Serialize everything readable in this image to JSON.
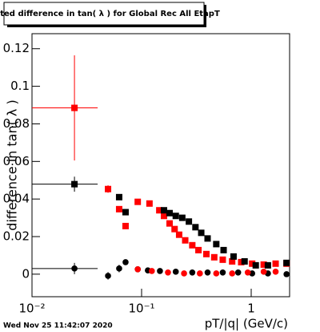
{
  "chart_data": {
    "type": "scatter",
    "title": "Fitted difference in tan( λ ) for Global Rec All EtapT",
    "x_label": "pT/|q| (GeV/c)",
    "y_label": "difference in tan( λ )",
    "date": "Wed Nov 25 11:42:07 2020",
    "log_x": true,
    "xlim": [
      0.01,
      2.24
    ],
    "ylim": [
      -0.012,
      0.128
    ],
    "xticks": [
      {
        "value": 0.01,
        "label": "10⁻²"
      },
      {
        "value": 0.1,
        "label": "10⁻¹"
      },
      1
    ],
    "yticks": [
      0,
      0.02,
      0.04,
      0.06,
      0.08,
      0.1,
      0.12
    ],
    "series": [
      {
        "name": "red squares",
        "color": "#ff0000",
        "marker": "square",
        "x": [
          0.0244,
          0.0494,
          0.0624,
          0.0714,
          0.0922,
          0.118,
          0.145,
          0.16,
          0.18,
          0.2,
          0.22,
          0.25,
          0.29,
          0.33,
          0.39,
          0.46,
          0.55,
          0.67,
          0.81,
          1.02,
          1.3,
          1.67,
          2.1
        ],
        "values": [
          0.0885,
          0.0453,
          0.0346,
          0.0256,
          0.0385,
          0.0376,
          0.034,
          0.031,
          0.027,
          0.024,
          0.021,
          0.018,
          0.0154,
          0.0128,
          0.0107,
          0.009,
          0.0077,
          0.0068,
          0.0064,
          0.0056,
          0.0051,
          0.0056,
          0.0056
        ],
        "errors": [
          0.028,
          0.002,
          null,
          null,
          null,
          null,
          null,
          null,
          null,
          null,
          null,
          null,
          null,
          null,
          null,
          null,
          null,
          null,
          null,
          null,
          null,
          null,
          null
        ],
        "xerr_low": [
          0.01,
          null,
          null,
          null,
          null,
          null,
          null,
          null,
          null,
          null,
          null,
          null,
          null,
          null,
          null,
          null,
          null,
          null,
          null,
          null,
          null,
          null,
          null
        ],
        "xerr_high": [
          0.0397,
          null,
          null,
          null,
          null,
          null,
          null,
          null,
          null,
          null,
          null,
          null,
          null,
          null,
          null,
          null,
          null,
          null,
          null,
          null,
          null,
          null,
          null
        ]
      },
      {
        "name": "black squares",
        "color": "#000000",
        "marker": "square",
        "x": [
          0.0244,
          0.0624,
          0.0714,
          0.16,
          0.18,
          0.205,
          0.235,
          0.27,
          0.31,
          0.35,
          0.4,
          0.48,
          0.56,
          0.69,
          0.87,
          1.1,
          1.42,
          2.1
        ],
        "values": [
          0.0479,
          0.041,
          0.033,
          0.034,
          0.0325,
          0.031,
          0.03,
          0.028,
          0.025,
          0.022,
          0.019,
          0.016,
          0.0128,
          0.0094,
          0.0068,
          0.0047,
          0.0047,
          0.006
        ],
        "errors": [
          0.004,
          null,
          null,
          null,
          null,
          null,
          null,
          null,
          null,
          null,
          null,
          null,
          null,
          null,
          null,
          null,
          null,
          null
        ],
        "xerr_low": [
          0.01,
          null,
          null,
          null,
          null,
          null,
          null,
          null,
          null,
          null,
          null,
          null,
          null,
          null,
          null,
          null,
          null,
          null
        ],
        "xerr_high": [
          0.0397,
          null,
          null,
          null,
          null,
          null,
          null,
          null,
          null,
          null,
          null,
          null,
          null,
          null,
          null,
          null,
          null,
          null
        ]
      },
      {
        "name": "black circles",
        "color": "#000000",
        "marker": "circle",
        "x": [
          0.0244,
          0.0494,
          0.0624,
          0.0714,
          0.0922,
          0.114,
          0.147,
          0.205,
          0.29,
          0.4,
          0.55,
          0.76,
          1.02,
          1.42,
          2.1
        ],
        "values": [
          0.003,
          -0.0009,
          0.003,
          0.0064,
          0.0026,
          0.002,
          0.0017,
          0.0013,
          0.0009,
          0.0009,
          0.0009,
          0.0009,
          0.0004,
          0.0004,
          0
        ],
        "errors": [
          0.003,
          0.002,
          0.002,
          null,
          null,
          null,
          null,
          null,
          null,
          null,
          null,
          null,
          null,
          null,
          null
        ],
        "xerr_low": [
          0.01,
          null,
          null,
          null,
          null,
          null,
          null,
          null,
          null,
          null,
          null,
          null,
          null,
          null,
          null
        ],
        "xerr_high": [
          0.0397,
          null,
          null,
          null,
          null,
          null,
          null,
          null,
          null,
          null,
          null,
          null,
          null,
          null,
          null
        ]
      },
      {
        "name": "red circles",
        "color": "#ff0000",
        "marker": "circle",
        "x": [
          0.0922,
          0.124,
          0.174,
          0.244,
          0.34,
          0.48,
          0.67,
          0.93,
          1.3,
          1.67
        ],
        "values": [
          0.0026,
          0.0017,
          0.0009,
          0.0004,
          0.0004,
          0.0004,
          0.0004,
          0.0009,
          0.0013,
          0.0013
        ]
      }
    ]
  }
}
